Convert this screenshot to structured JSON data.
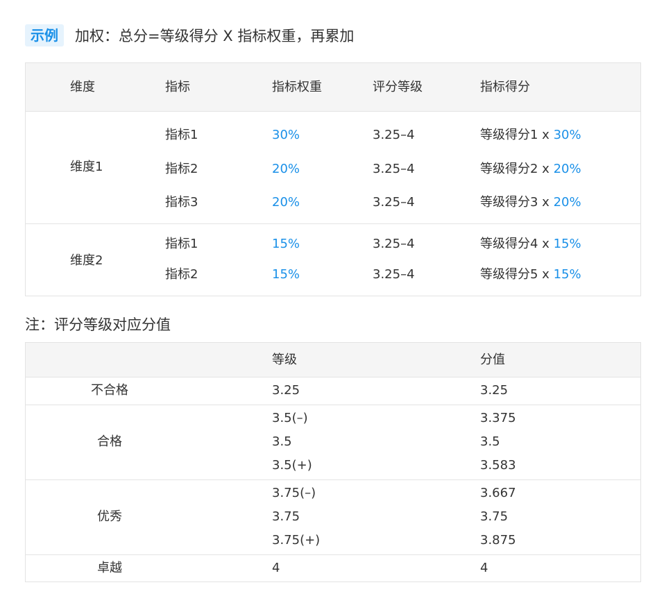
{
  "header": {
    "badge": "示例",
    "text": "加权：总分=等级得分 X 指标权重，再累加"
  },
  "table1": {
    "columns": [
      "维度",
      "指标",
      "指标权重",
      "评分等级",
      "指标得分"
    ],
    "groups": [
      {
        "dimension": "维度1",
        "rows": [
          {
            "indicator": "指标1",
            "weight": "30%",
            "grade": "3.25–4",
            "score_prefix": "等级得分1 x ",
            "score_weight": "30%"
          },
          {
            "indicator": "指标2",
            "weight": "20%",
            "grade": "3.25–4",
            "score_prefix": "等级得分2 x ",
            "score_weight": "20%"
          },
          {
            "indicator": "指标3",
            "weight": "20%",
            "grade": "3.25–4",
            "score_prefix": "等级得分3 x ",
            "score_weight": "20%"
          }
        ]
      },
      {
        "dimension": "维度2",
        "rows": [
          {
            "indicator": "指标1",
            "weight": "15%",
            "grade": "3.25–4",
            "score_prefix": "等级得分4 x ",
            "score_weight": "15%"
          },
          {
            "indicator": "指标2",
            "weight": "15%",
            "grade": "3.25–4",
            "score_prefix": "等级得分5 x ",
            "score_weight": "15%"
          }
        ]
      }
    ]
  },
  "note": "注：评分等级对应分值",
  "table2": {
    "columns": [
      "",
      "等级",
      "分值"
    ],
    "groups": [
      {
        "label": "不合格",
        "rows": [
          {
            "grade": "3.25",
            "value": "3.25"
          }
        ]
      },
      {
        "label": "合格",
        "rows": [
          {
            "grade": "3.5(–)",
            "value": "3.375"
          },
          {
            "grade": "3.5",
            "value": "3.5"
          },
          {
            "grade": "3.5(+)",
            "value": "3.583"
          }
        ]
      },
      {
        "label": "优秀",
        "rows": [
          {
            "grade": "3.75(–)",
            "value": "3.667"
          },
          {
            "grade": "3.75",
            "value": "3.75"
          },
          {
            "grade": "3.75(+)",
            "value": "3.875"
          }
        ]
      },
      {
        "label": "卓越",
        "rows": [
          {
            "grade": "4",
            "value": "4"
          }
        ]
      }
    ]
  },
  "colors": {
    "accent": "#1a90e8",
    "badge_bg": "#e6f3fd",
    "header_bg": "#f5f5f5",
    "border": "#e3e3e3",
    "text": "#333333"
  }
}
